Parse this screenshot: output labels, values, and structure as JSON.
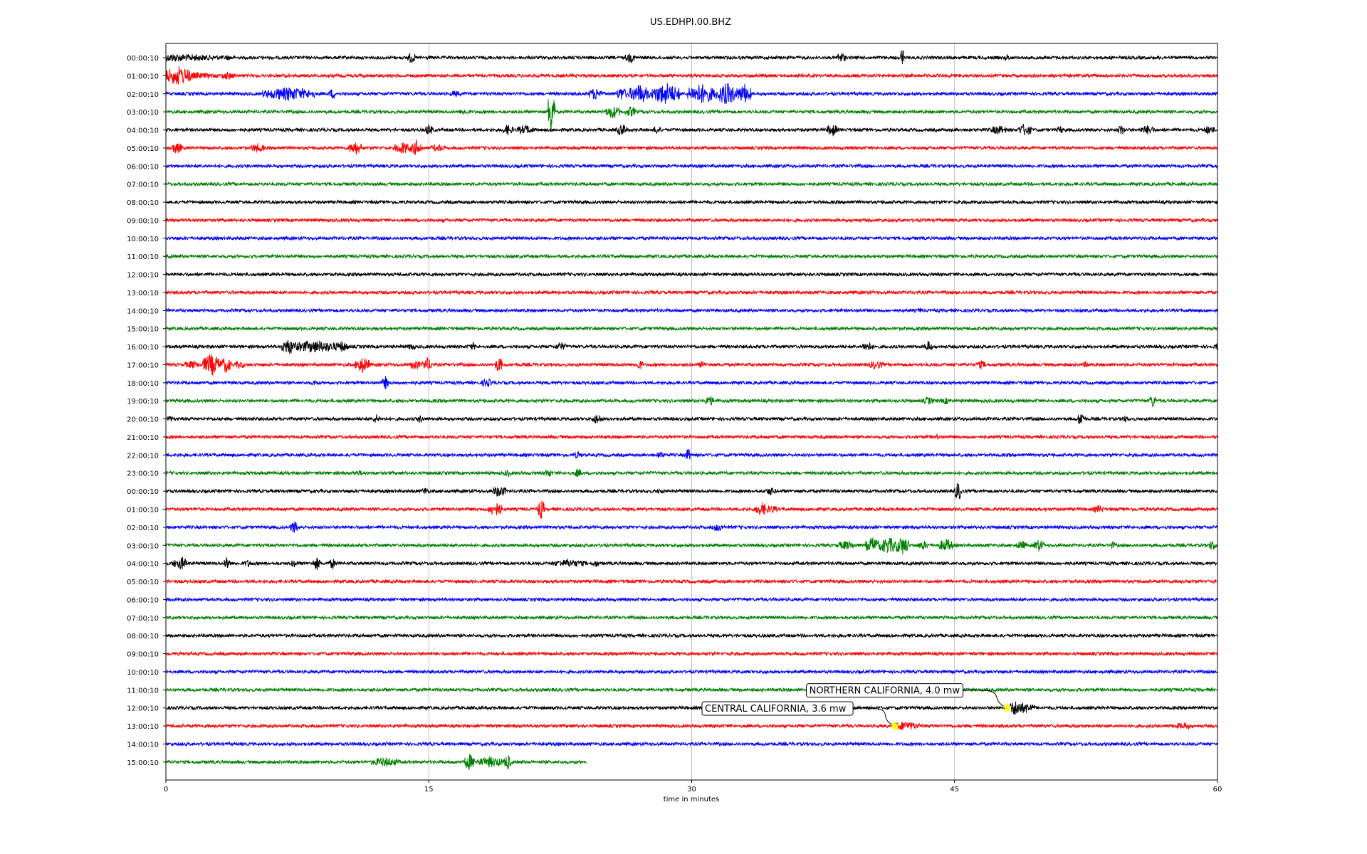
{
  "chart_data": {
    "type": "line",
    "title": "US.EDHPI.00.BHZ",
    "xlabel": "time in minutes",
    "ylabel": "",
    "xlim": [
      0,
      60
    ],
    "xticks": [
      0,
      15,
      30,
      45,
      60
    ],
    "x_gridlines": [
      15,
      30,
      45
    ],
    "grid": "vertical",
    "color_cycle": [
      "#000000",
      "#ff0000",
      "#0000ff",
      "#008000"
    ],
    "trace_duration_minutes": 60,
    "series": [
      {
        "label": "00:00:10",
        "end_minute": 60,
        "events": [
          [
            0.5,
            2,
            6
          ],
          [
            1.5,
            2,
            5
          ],
          [
            3.5,
            0.5,
            4
          ],
          [
            14.0,
            0.2,
            9
          ],
          [
            26.5,
            0.3,
            7
          ],
          [
            38.5,
            0.3,
            8
          ],
          [
            42.0,
            0.1,
            16
          ],
          [
            48.0,
            0.2,
            5
          ]
        ]
      },
      {
        "label": "01:00:10",
        "end_minute": 60,
        "events": [
          [
            0.7,
            0.8,
            14
          ],
          [
            1.5,
            1.5,
            5
          ],
          [
            3.5,
            0.4,
            6
          ]
        ]
      },
      {
        "label": "02:00:10",
        "end_minute": 60,
        "events": [
          [
            7.0,
            1.5,
            10
          ],
          [
            9.5,
            0.2,
            8
          ],
          [
            16.5,
            0.3,
            5
          ],
          [
            24.5,
            0.4,
            9
          ],
          [
            26.0,
            0.3,
            10
          ],
          [
            27.0,
            0.6,
            14
          ],
          [
            28.5,
            0.8,
            16
          ],
          [
            30.5,
            0.8,
            15
          ],
          [
            32.0,
            0.6,
            16
          ],
          [
            33.0,
            0.4,
            15
          ]
        ]
      },
      {
        "label": "03:00:10",
        "end_minute": 60,
        "events": [
          [
            17.0,
            0.3,
            5
          ],
          [
            22.0,
            0.2,
            36
          ],
          [
            25.5,
            0.4,
            10
          ],
          [
            26.5,
            0.3,
            8
          ]
        ]
      },
      {
        "label": "04:00:10",
        "end_minute": 60,
        "events": [
          [
            15.0,
            0.2,
            9
          ],
          [
            19.5,
            0.3,
            8
          ],
          [
            20.5,
            0.5,
            7
          ],
          [
            26.0,
            0.3,
            9
          ],
          [
            28.0,
            0.2,
            7
          ],
          [
            38.0,
            0.3,
            10
          ],
          [
            47.5,
            0.5,
            7
          ],
          [
            49.0,
            0.4,
            9
          ],
          [
            51.0,
            0.2,
            6
          ],
          [
            54.5,
            0.2,
            8
          ],
          [
            56.0,
            0.4,
            7
          ],
          [
            59.5,
            0.3,
            7
          ]
        ]
      },
      {
        "label": "05:00:10",
        "end_minute": 60,
        "events": [
          [
            0.6,
            0.3,
            9
          ],
          [
            5.2,
            0.4,
            7
          ],
          [
            10.8,
            0.4,
            10
          ],
          [
            13.5,
            0.5,
            9
          ],
          [
            14.3,
            0.3,
            12
          ],
          [
            15.5,
            0.4,
            6
          ]
        ]
      },
      {
        "label": "06:00:10",
        "end_minute": 60,
        "events": []
      },
      {
        "label": "07:00:10",
        "end_minute": 60,
        "events": []
      },
      {
        "label": "08:00:10",
        "end_minute": 60,
        "events": []
      },
      {
        "label": "09:00:10",
        "end_minute": 60,
        "events": []
      },
      {
        "label": "10:00:10",
        "end_minute": 60,
        "events": []
      },
      {
        "label": "11:00:10",
        "end_minute": 60,
        "events": []
      },
      {
        "label": "12:00:10",
        "end_minute": 60,
        "events": []
      },
      {
        "label": "13:00:10",
        "end_minute": 60,
        "events": []
      },
      {
        "label": "14:00:10",
        "end_minute": 60,
        "events": [
          [
            43.0,
            0.2,
            4
          ]
        ]
      },
      {
        "label": "15:00:10",
        "end_minute": 60,
        "events": []
      },
      {
        "label": "16:00:10",
        "end_minute": 60,
        "events": [
          [
            7.0,
            0.4,
            12
          ],
          [
            8.5,
            1.5,
            9
          ],
          [
            10.0,
            0.4,
            8
          ],
          [
            14.0,
            0.2,
            6
          ],
          [
            17.5,
            0.2,
            6
          ],
          [
            22.5,
            0.3,
            7
          ],
          [
            40.0,
            0.3,
            8
          ],
          [
            43.5,
            0.2,
            9
          ],
          [
            60.0,
            0.2,
            6
          ]
        ]
      },
      {
        "label": "17:00:10",
        "end_minute": 60,
        "events": [
          [
            1.5,
            0.5,
            6
          ],
          [
            2.6,
            0.5,
            16
          ],
          [
            3.4,
            0.3,
            12
          ],
          [
            4.2,
            0.3,
            6
          ],
          [
            11.2,
            0.4,
            12
          ],
          [
            14.2,
            0.3,
            8
          ],
          [
            14.9,
            0.3,
            10
          ],
          [
            19.0,
            0.2,
            12
          ],
          [
            27.0,
            0.2,
            8
          ],
          [
            30.6,
            0.2,
            6
          ],
          [
            40.5,
            0.4,
            7
          ],
          [
            46.5,
            0.3,
            6
          ],
          [
            52.5,
            0.2,
            5
          ]
        ]
      },
      {
        "label": "18:00:10",
        "end_minute": 60,
        "events": [
          [
            8.5,
            0.2,
            5
          ],
          [
            12.5,
            0.2,
            10
          ],
          [
            18.3,
            0.3,
            7
          ]
        ]
      },
      {
        "label": "19:00:10",
        "end_minute": 60,
        "events": [
          [
            31.0,
            0.3,
            8
          ],
          [
            43.5,
            0.3,
            6
          ],
          [
            44.5,
            0.3,
            5
          ],
          [
            56.3,
            0.2,
            10
          ]
        ]
      },
      {
        "label": "20:00:10",
        "end_minute": 60,
        "events": [
          [
            0.2,
            0.2,
            5
          ],
          [
            12.0,
            0.2,
            7
          ],
          [
            14.5,
            0.2,
            6
          ],
          [
            24.6,
            0.3,
            8
          ],
          [
            52.2,
            0.2,
            11
          ],
          [
            54.7,
            0.2,
            5
          ]
        ]
      },
      {
        "label": "21:00:10",
        "end_minute": 60,
        "events": [
          [
            44.0,
            0.2,
            4
          ]
        ]
      },
      {
        "label": "22:00:10",
        "end_minute": 60,
        "events": [
          [
            23.5,
            0.2,
            6
          ],
          [
            28.2,
            0.2,
            6
          ],
          [
            29.8,
            0.2,
            10
          ]
        ]
      },
      {
        "label": "23:00:10",
        "end_minute": 60,
        "events": [
          [
            11.0,
            0.5,
            4
          ],
          [
            19.5,
            0.2,
            6
          ],
          [
            21.8,
            0.2,
            7
          ],
          [
            23.5,
            0.2,
            7
          ]
        ]
      },
      {
        "label": "00:00:10",
        "end_minute": 60,
        "events": [
          [
            14.8,
            0.2,
            6
          ],
          [
            19.0,
            0.4,
            9
          ],
          [
            28.2,
            0.2,
            5
          ],
          [
            34.5,
            0.3,
            6
          ],
          [
            45.2,
            0.2,
            14
          ]
        ]
      },
      {
        "label": "01:00:10",
        "end_minute": 60,
        "events": [
          [
            18.8,
            0.4,
            11
          ],
          [
            21.4,
            0.2,
            14
          ],
          [
            34.0,
            0.4,
            10
          ],
          [
            34.6,
            0.3,
            6
          ],
          [
            53.2,
            0.3,
            6
          ]
        ]
      },
      {
        "label": "02:00:10",
        "end_minute": 60,
        "events": [
          [
            7.3,
            0.2,
            10
          ],
          [
            31.5,
            0.4,
            6
          ]
        ]
      },
      {
        "label": "03:00:10",
        "end_minute": 60,
        "events": [
          [
            38.8,
            0.5,
            7
          ],
          [
            40.3,
            0.4,
            12
          ],
          [
            41.2,
            0.6,
            12
          ],
          [
            42.0,
            0.4,
            14
          ],
          [
            43.2,
            0.3,
            7
          ],
          [
            44.5,
            0.4,
            10
          ],
          [
            48.8,
            0.3,
            7
          ],
          [
            49.8,
            0.3,
            9
          ],
          [
            54.0,
            0.2,
            6
          ],
          [
            59.7,
            0.2,
            8
          ]
        ]
      },
      {
        "label": "04:00:10",
        "end_minute": 60,
        "events": [
          [
            0.5,
            0.2,
            6
          ],
          [
            0.9,
            0.3,
            10
          ],
          [
            3.5,
            0.2,
            10
          ],
          [
            4.7,
            0.2,
            6
          ],
          [
            7.3,
            0.2,
            6
          ],
          [
            8.6,
            0.2,
            10
          ],
          [
            9.5,
            0.2,
            8
          ],
          [
            23.0,
            1.0,
            6
          ],
          [
            24.5,
            0.2,
            6
          ]
        ]
      },
      {
        "label": "05:00:10",
        "end_minute": 60,
        "events": []
      },
      {
        "label": "06:00:10",
        "end_minute": 60,
        "events": []
      },
      {
        "label": "07:00:10",
        "end_minute": 60,
        "events": []
      },
      {
        "label": "08:00:10",
        "end_minute": 60,
        "events": []
      },
      {
        "label": "09:00:10",
        "end_minute": 60,
        "events": []
      },
      {
        "label": "10:00:10",
        "end_minute": 60,
        "events": []
      },
      {
        "label": "11:00:10",
        "end_minute": 60,
        "events": []
      },
      {
        "label": "12:00:10",
        "end_minute": 60,
        "events": [
          [
            48.5,
            0.4,
            12
          ],
          [
            49.0,
            0.6,
            8
          ]
        ]
      },
      {
        "label": "13:00:10",
        "end_minute": 60,
        "events": [
          [
            42.2,
            0.8,
            7
          ],
          [
            58.0,
            0.6,
            5
          ]
        ]
      },
      {
        "label": "14:00:10",
        "end_minute": 60,
        "events": []
      },
      {
        "label": "15:00:10",
        "end_minute": 24,
        "events": [
          [
            12.5,
            0.8,
            7
          ],
          [
            17.3,
            0.3,
            12
          ],
          [
            18.5,
            0.8,
            8
          ],
          [
            19.5,
            0.2,
            12
          ]
        ]
      }
    ],
    "annotations": [
      {
        "text": "NORTHERN CALIFORNIA, 4.0 mw",
        "trace_index": 36,
        "minute": 48.0,
        "marker": "star",
        "marker_color": "#ffff00"
      },
      {
        "text": "CENTRAL CALIFORNIA, 3.6 mw",
        "trace_index": 37,
        "minute": 41.6,
        "marker": "star",
        "marker_color": "#ffff00"
      }
    ]
  }
}
